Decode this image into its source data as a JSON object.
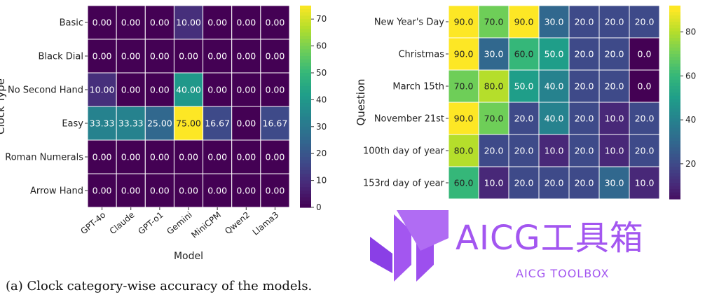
{
  "chart_data": [
    {
      "type": "heatmap",
      "title": "",
      "xlabel": "Model",
      "ylabel": "Clock Type",
      "x_categories": [
        "GPT-4o",
        "Claude",
        "GPT-o1",
        "Gemini",
        "MiniCPM",
        "Qwen2",
        "Llama3"
      ],
      "y_categories": [
        "Basic",
        "Black Dial",
        "No Second Hand",
        "Easy",
        "Roman Numerals",
        "Arrow Hand"
      ],
      "values": [
        [
          "0.00",
          "0.00",
          "0.00",
          "10.00",
          "0.00",
          "0.00",
          "0.00"
        ],
        [
          "0.00",
          "0.00",
          "0.00",
          "0.00",
          "0.00",
          "0.00",
          "0.00"
        ],
        [
          "10.00",
          "0.00",
          "0.00",
          "40.00",
          "0.00",
          "0.00",
          "0.00"
        ],
        [
          "33.33",
          "33.33",
          "25.00",
          "75.00",
          "16.67",
          "0.00",
          "16.67"
        ],
        [
          "0.00",
          "0.00",
          "0.00",
          "0.00",
          "0.00",
          "0.00",
          "0.00"
        ],
        [
          "0.00",
          "0.00",
          "0.00",
          "0.00",
          "0.00",
          "0.00",
          "0.00"
        ]
      ],
      "colorscale": "viridis",
      "vmin": 0,
      "vmax": 75,
      "colorbar_ticks": [
        "0",
        "10",
        "20",
        "30",
        "40",
        "50",
        "60",
        "70"
      ]
    },
    {
      "type": "heatmap",
      "title": "",
      "xlabel": "",
      "ylabel": "Question",
      "x_categories": [],
      "y_categories": [
        "New Year's Day",
        "Christmas",
        "March 15th",
        "November 21st",
        "100th day of year",
        "153rd day of year"
      ],
      "values": [
        [
          "90.0",
          "70.0",
          "90.0",
          "30.0",
          "20.0",
          "20.0",
          "20.0"
        ],
        [
          "90.0",
          "30.0",
          "60.0",
          "50.0",
          "20.0",
          "20.0",
          "0.0"
        ],
        [
          "70.0",
          "80.0",
          "50.0",
          "40.0",
          "20.0",
          "20.0",
          "0.0"
        ],
        [
          "90.0",
          "70.0",
          "20.0",
          "40.0",
          "20.0",
          "10.0",
          "20.0"
        ],
        [
          "80.0",
          "20.0",
          "20.0",
          "10.0",
          "20.0",
          "10.0",
          "20.0"
        ],
        [
          "60.0",
          "10.0",
          "20.0",
          "20.0",
          "20.0",
          "30.0",
          "10.0"
        ]
      ],
      "colorscale": "viridis",
      "vmin": 0,
      "vmax": 90,
      "colorbar_ticks": [
        "20",
        "40",
        "60",
        "80"
      ]
    }
  ],
  "caption": "(a) Clock category-wise accuracy of the models.",
  "watermark": {
    "text": "AICG工具箱",
    "subtext": "AICG TOOLBOX",
    "color": "#a356f0"
  }
}
